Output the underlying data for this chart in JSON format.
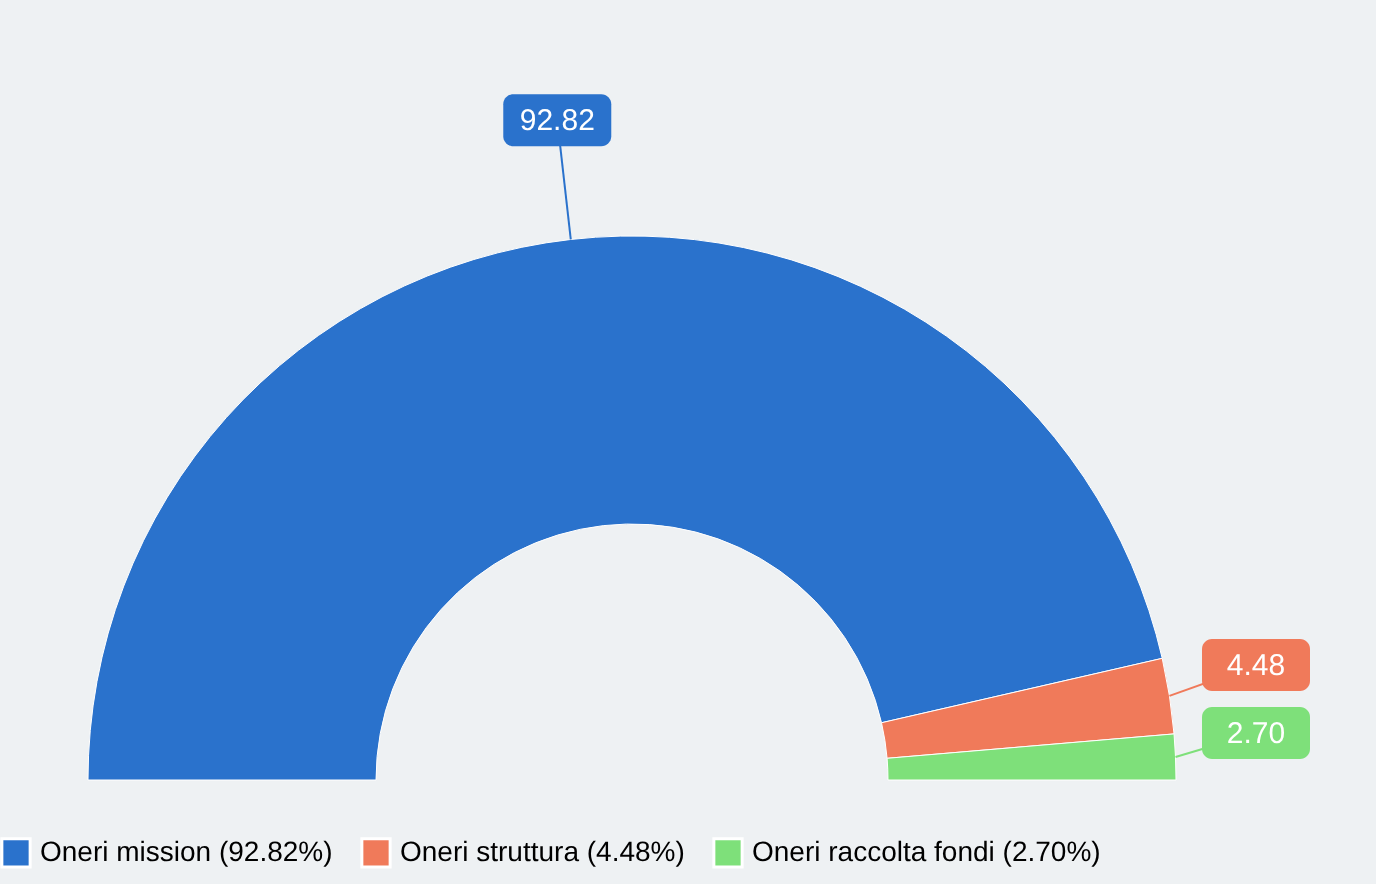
{
  "chart_data": {
    "type": "donut",
    "categories": [
      "Oneri mission (92.82%)",
      "Oneri struttura (4.48%)",
      "Oneri raccolta fondi (2.70%)"
    ],
    "values": [
      92.82,
      4.48,
      2.7
    ],
    "colors": [
      "#2a72cc",
      "#f07a5a",
      "#7ee07a"
    ],
    "value_labels": [
      "92.82",
      "4.48",
      "2.70"
    ],
    "legend": "bottom"
  }
}
